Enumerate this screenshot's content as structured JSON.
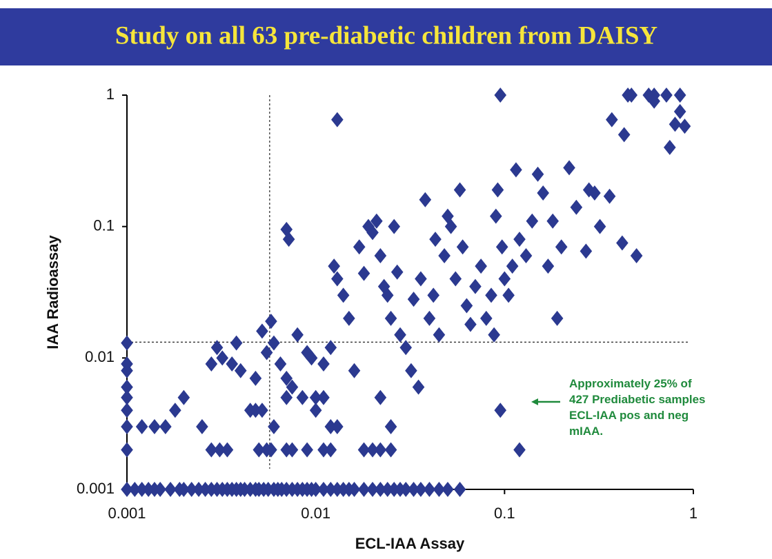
{
  "chart_data": {
    "type": "scatter",
    "title": "Study on all 63 pre-diabetic children from DAISY",
    "x_label": "ECL-IAA Assay",
    "y_label": "IAA Radioassay",
    "log_scale": true,
    "color": "#2b3990",
    "xlim": [
      0.001,
      1
    ],
    "ylim": [
      0.001,
      1
    ],
    "xticks": [
      0.001,
      0.01,
      0.1,
      1
    ],
    "yticks": [
      0.001,
      0.01,
      0.1,
      1
    ],
    "reference_lines": {
      "x": 0.0057,
      "y": 0.0132
    },
    "annotation": [
      "Approximately 25% of",
      "427 Prediabetic samples",
      "ECL-IAA pos and neg",
      "mIAA."
    ],
    "x": [
      0.001,
      0.0011,
      0.0012,
      0.0013,
      0.0014,
      0.0015,
      0.0017,
      0.0019,
      0.002,
      0.0022,
      0.0024,
      0.0026,
      0.0028,
      0.003,
      0.0032,
      0.0034,
      0.0036,
      0.0038,
      0.004,
      0.0042,
      0.0045,
      0.0048,
      0.005,
      0.0053,
      0.0056,
      0.006,
      0.0063,
      0.0066,
      0.007,
      0.0075,
      0.008,
      0.0085,
      0.009,
      0.0095,
      0.01,
      0.011,
      0.012,
      0.013,
      0.014,
      0.015,
      0.016,
      0.018,
      0.02,
      0.022,
      0.024,
      0.026,
      0.028,
      0.03,
      0.033,
      0.036,
      0.04,
      0.045,
      0.05,
      0.058,
      0.001,
      0.001,
      0.001,
      0.001,
      0.001,
      0.001,
      0.001,
      0.001,
      0.0012,
      0.0014,
      0.0016,
      0.0028,
      0.0031,
      0.0034,
      0.005,
      0.0055,
      0.0058,
      0.007,
      0.0075,
      0.009,
      0.011,
      0.012,
      0.018,
      0.02,
      0.022,
      0.025,
      0.12,
      0.0018,
      0.0045,
      0.0048,
      0.0052,
      0.01,
      0.095,
      0.002,
      0.007,
      0.01,
      0.011,
      0.022,
      0.0025,
      0.006,
      0.012,
      0.013,
      0.025,
      0.0028,
      0.003,
      0.0032,
      0.0036,
      0.0038,
      0.004,
      0.0048,
      0.0052,
      0.0055,
      0.0058,
      0.006,
      0.0065,
      0.007,
      0.0075,
      0.008,
      0.0085,
      0.009,
      0.0095,
      0.007,
      0.0072,
      0.011,
      0.012,
      0.0125,
      0.013,
      0.013,
      0.014,
      0.015,
      0.016,
      0.017,
      0.018,
      0.019,
      0.02,
      0.021,
      0.022,
      0.023,
      0.024,
      0.025,
      0.026,
      0.027,
      0.028,
      0.03,
      0.032,
      0.033,
      0.035,
      0.036,
      0.038,
      0.04,
      0.042,
      0.043,
      0.045,
      0.048,
      0.05,
      0.052,
      0.055,
      0.058,
      0.06,
      0.063,
      0.066,
      0.07,
      0.075,
      0.08,
      0.085,
      0.088,
      0.09,
      0.092,
      0.095,
      0.097,
      0.1,
      0.105,
      0.11,
      0.115,
      0.12,
      0.13,
      0.14,
      0.15,
      0.16,
      0.17,
      0.18,
      0.19,
      0.2,
      0.22,
      0.24,
      0.27,
      0.28,
      0.3,
      0.32,
      0.36,
      0.37,
      0.42,
      0.45,
      0.47,
      0.43,
      0.5,
      0.58,
      0.62,
      0.72,
      0.75,
      0.8,
      0.85,
      0.85,
      0.9,
      0.62
    ],
    "values": [
      0.001,
      0.001,
      0.001,
      0.001,
      0.001,
      0.001,
      0.001,
      0.001,
      0.001,
      0.001,
      0.001,
      0.001,
      0.001,
      0.001,
      0.001,
      0.001,
      0.001,
      0.001,
      0.001,
      0.001,
      0.001,
      0.001,
      0.001,
      0.001,
      0.001,
      0.001,
      0.001,
      0.001,
      0.001,
      0.001,
      0.001,
      0.001,
      0.001,
      0.001,
      0.001,
      0.001,
      0.001,
      0.001,
      0.001,
      0.001,
      0.001,
      0.001,
      0.001,
      0.001,
      0.001,
      0.001,
      0.001,
      0.001,
      0.001,
      0.001,
      0.001,
      0.001,
      0.001,
      0.001,
      0.013,
      0.009,
      0.008,
      0.006,
      0.005,
      0.004,
      0.003,
      0.002,
      0.003,
      0.003,
      0.003,
      0.002,
      0.002,
      0.002,
      0.002,
      0.002,
      0.002,
      0.002,
      0.002,
      0.002,
      0.002,
      0.002,
      0.002,
      0.002,
      0.002,
      0.002,
      0.002,
      0.004,
      0.004,
      0.004,
      0.004,
      0.004,
      0.004,
      0.005,
      0.005,
      0.005,
      0.005,
      0.005,
      0.003,
      0.003,
      0.003,
      0.003,
      0.003,
      0.009,
      0.012,
      0.01,
      0.009,
      0.013,
      0.008,
      0.007,
      0.016,
      0.011,
      0.019,
      0.013,
      0.009,
      0.007,
      0.006,
      0.015,
      0.005,
      0.011,
      0.01,
      0.095,
      0.08,
      0.009,
      0.012,
      0.05,
      0.04,
      0.65,
      0.03,
      0.02,
      0.008,
      0.07,
      0.044,
      0.1,
      0.09,
      0.11,
      0.06,
      0.035,
      0.03,
      0.02,
      0.1,
      0.045,
      0.015,
      0.012,
      0.008,
      0.028,
      0.006,
      0.04,
      0.16,
      0.02,
      0.03,
      0.08,
      0.015,
      0.06,
      0.12,
      0.1,
      0.04,
      0.19,
      0.07,
      0.025,
      0.018,
      0.035,
      0.05,
      0.02,
      0.03,
      0.015,
      0.12,
      0.19,
      1,
      0.07,
      0.04,
      0.03,
      0.05,
      0.27,
      0.08,
      0.06,
      0.11,
      0.25,
      0.18,
      0.05,
      0.11,
      0.02,
      0.07,
      0.28,
      0.14,
      0.065,
      0.19,
      0.18,
      0.1,
      0.17,
      0.65,
      0.075,
      1,
      1,
      0.5,
      0.06,
      1,
      1,
      1,
      0.4,
      0.6,
      1,
      0.75,
      0.58,
      0.9
    ]
  }
}
